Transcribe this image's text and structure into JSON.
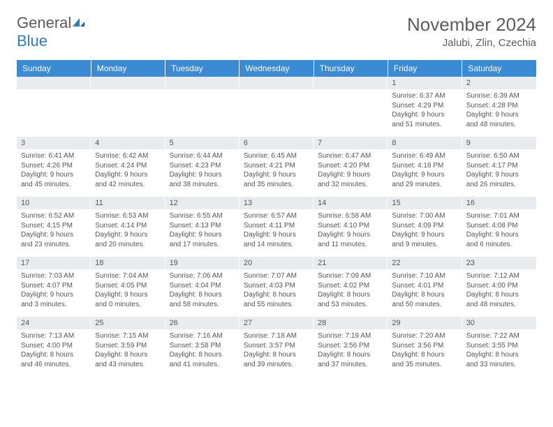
{
  "logo": {
    "word1": "General",
    "word2": "Blue"
  },
  "title": "November 2024",
  "location": "Jalubi, Zlin, Czechia",
  "colors": {
    "header_bg": "#3b8bd4",
    "header_text": "#ffffff",
    "daynum_bg": "#e9ecef",
    "body_text": "#555555",
    "title_text": "#5c5c5c",
    "logo_gray": "#5a5a5a",
    "logo_blue": "#2b7dc4",
    "background": "#ffffff"
  },
  "typography": {
    "month_title_fontsize": 26,
    "location_fontsize": 15,
    "logo_fontsize": 22,
    "dayheader_fontsize": 12,
    "daynum_fontsize": 11,
    "body_fontsize": 10
  },
  "day_headers": [
    "Sunday",
    "Monday",
    "Tuesday",
    "Wednesday",
    "Thursday",
    "Friday",
    "Saturday"
  ],
  "weeks": [
    [
      {
        "n": "",
        "sunrise": "",
        "sunset": "",
        "daylight": ""
      },
      {
        "n": "",
        "sunrise": "",
        "sunset": "",
        "daylight": ""
      },
      {
        "n": "",
        "sunrise": "",
        "sunset": "",
        "daylight": ""
      },
      {
        "n": "",
        "sunrise": "",
        "sunset": "",
        "daylight": ""
      },
      {
        "n": "",
        "sunrise": "",
        "sunset": "",
        "daylight": ""
      },
      {
        "n": "1",
        "sunrise": "Sunrise: 6:37 AM",
        "sunset": "Sunset: 4:29 PM",
        "daylight": "Daylight: 9 hours and 51 minutes."
      },
      {
        "n": "2",
        "sunrise": "Sunrise: 6:39 AM",
        "sunset": "Sunset: 4:28 PM",
        "daylight": "Daylight: 9 hours and 48 minutes."
      }
    ],
    [
      {
        "n": "3",
        "sunrise": "Sunrise: 6:41 AM",
        "sunset": "Sunset: 4:26 PM",
        "daylight": "Daylight: 9 hours and 45 minutes."
      },
      {
        "n": "4",
        "sunrise": "Sunrise: 6:42 AM",
        "sunset": "Sunset: 4:24 PM",
        "daylight": "Daylight: 9 hours and 42 minutes."
      },
      {
        "n": "5",
        "sunrise": "Sunrise: 6:44 AM",
        "sunset": "Sunset: 4:23 PM",
        "daylight": "Daylight: 9 hours and 38 minutes."
      },
      {
        "n": "6",
        "sunrise": "Sunrise: 6:45 AM",
        "sunset": "Sunset: 4:21 PM",
        "daylight": "Daylight: 9 hours and 35 minutes."
      },
      {
        "n": "7",
        "sunrise": "Sunrise: 6:47 AM",
        "sunset": "Sunset: 4:20 PM",
        "daylight": "Daylight: 9 hours and 32 minutes."
      },
      {
        "n": "8",
        "sunrise": "Sunrise: 6:49 AM",
        "sunset": "Sunset: 4:18 PM",
        "daylight": "Daylight: 9 hours and 29 minutes."
      },
      {
        "n": "9",
        "sunrise": "Sunrise: 6:50 AM",
        "sunset": "Sunset: 4:17 PM",
        "daylight": "Daylight: 9 hours and 26 minutes."
      }
    ],
    [
      {
        "n": "10",
        "sunrise": "Sunrise: 6:52 AM",
        "sunset": "Sunset: 4:15 PM",
        "daylight": "Daylight: 9 hours and 23 minutes."
      },
      {
        "n": "11",
        "sunrise": "Sunrise: 6:53 AM",
        "sunset": "Sunset: 4:14 PM",
        "daylight": "Daylight: 9 hours and 20 minutes."
      },
      {
        "n": "12",
        "sunrise": "Sunrise: 6:55 AM",
        "sunset": "Sunset: 4:13 PM",
        "daylight": "Daylight: 9 hours and 17 minutes."
      },
      {
        "n": "13",
        "sunrise": "Sunrise: 6:57 AM",
        "sunset": "Sunset: 4:11 PM",
        "daylight": "Daylight: 9 hours and 14 minutes."
      },
      {
        "n": "14",
        "sunrise": "Sunrise: 6:58 AM",
        "sunset": "Sunset: 4:10 PM",
        "daylight": "Daylight: 9 hours and 11 minutes."
      },
      {
        "n": "15",
        "sunrise": "Sunrise: 7:00 AM",
        "sunset": "Sunset: 4:09 PM",
        "daylight": "Daylight: 9 hours and 9 minutes."
      },
      {
        "n": "16",
        "sunrise": "Sunrise: 7:01 AM",
        "sunset": "Sunset: 4:08 PM",
        "daylight": "Daylight: 9 hours and 6 minutes."
      }
    ],
    [
      {
        "n": "17",
        "sunrise": "Sunrise: 7:03 AM",
        "sunset": "Sunset: 4:07 PM",
        "daylight": "Daylight: 9 hours and 3 minutes."
      },
      {
        "n": "18",
        "sunrise": "Sunrise: 7:04 AM",
        "sunset": "Sunset: 4:05 PM",
        "daylight": "Daylight: 9 hours and 0 minutes."
      },
      {
        "n": "19",
        "sunrise": "Sunrise: 7:06 AM",
        "sunset": "Sunset: 4:04 PM",
        "daylight": "Daylight: 8 hours and 58 minutes."
      },
      {
        "n": "20",
        "sunrise": "Sunrise: 7:07 AM",
        "sunset": "Sunset: 4:03 PM",
        "daylight": "Daylight: 8 hours and 55 minutes."
      },
      {
        "n": "21",
        "sunrise": "Sunrise: 7:09 AM",
        "sunset": "Sunset: 4:02 PM",
        "daylight": "Daylight: 8 hours and 53 minutes."
      },
      {
        "n": "22",
        "sunrise": "Sunrise: 7:10 AM",
        "sunset": "Sunset: 4:01 PM",
        "daylight": "Daylight: 8 hours and 50 minutes."
      },
      {
        "n": "23",
        "sunrise": "Sunrise: 7:12 AM",
        "sunset": "Sunset: 4:00 PM",
        "daylight": "Daylight: 8 hours and 48 minutes."
      }
    ],
    [
      {
        "n": "24",
        "sunrise": "Sunrise: 7:13 AM",
        "sunset": "Sunset: 4:00 PM",
        "daylight": "Daylight: 8 hours and 46 minutes."
      },
      {
        "n": "25",
        "sunrise": "Sunrise: 7:15 AM",
        "sunset": "Sunset: 3:59 PM",
        "daylight": "Daylight: 8 hours and 43 minutes."
      },
      {
        "n": "26",
        "sunrise": "Sunrise: 7:16 AM",
        "sunset": "Sunset: 3:58 PM",
        "daylight": "Daylight: 8 hours and 41 minutes."
      },
      {
        "n": "27",
        "sunrise": "Sunrise: 7:18 AM",
        "sunset": "Sunset: 3:57 PM",
        "daylight": "Daylight: 8 hours and 39 minutes."
      },
      {
        "n": "28",
        "sunrise": "Sunrise: 7:19 AM",
        "sunset": "Sunset: 3:56 PM",
        "daylight": "Daylight: 8 hours and 37 minutes."
      },
      {
        "n": "29",
        "sunrise": "Sunrise: 7:20 AM",
        "sunset": "Sunset: 3:56 PM",
        "daylight": "Daylight: 8 hours and 35 minutes."
      },
      {
        "n": "30",
        "sunrise": "Sunrise: 7:22 AM",
        "sunset": "Sunset: 3:55 PM",
        "daylight": "Daylight: 8 hours and 33 minutes."
      }
    ]
  ]
}
